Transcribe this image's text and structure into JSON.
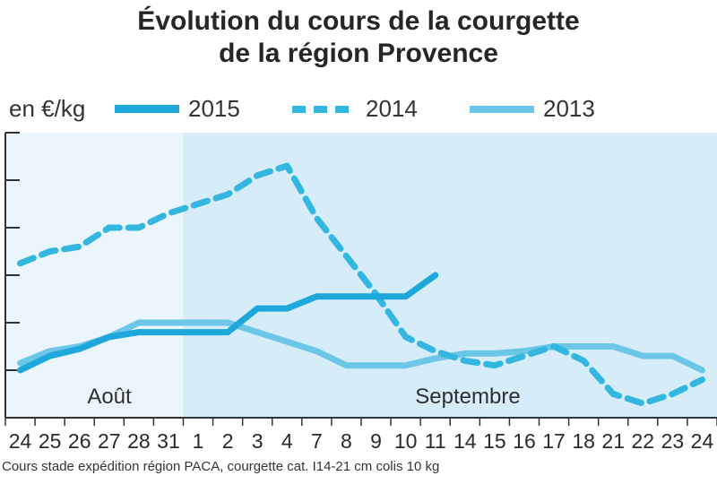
{
  "chart_data": {
    "type": "line",
    "title_lines": [
      "Évolution du cours de la courgette",
      "de la région Provence"
    ],
    "unit_label": "en €/kg",
    "categories": [
      "24",
      "25",
      "26",
      "27",
      "28",
      "31",
      "1",
      "2",
      "3",
      "4",
      "7",
      "8",
      "9",
      "10",
      "11",
      "14",
      "15",
      "16",
      "17",
      "18",
      "21",
      "22",
      "23",
      "24"
    ],
    "periods": [
      {
        "label": "Août",
        "from_index": 0,
        "to_index": 5
      },
      {
        "label": "Septembre",
        "from_index": 6,
        "to_index": 23
      }
    ],
    "y_ticks": [
      0,
      1,
      2,
      3,
      4,
      5,
      6
    ],
    "y_tick_labels_visible": false,
    "ylim": [
      0,
      6
    ],
    "series": [
      {
        "name": "2015",
        "style": "solid-thick",
        "color": "#1ea7db",
        "values": [
          1.0,
          1.3,
          1.45,
          1.7,
          1.8,
          1.8,
          1.8,
          1.8,
          2.3,
          2.3,
          2.55,
          2.55,
          2.55,
          2.55,
          3.0,
          null,
          null,
          null,
          null,
          null,
          null,
          null,
          null,
          null
        ]
      },
      {
        "name": "2014",
        "style": "dashed",
        "color": "#33b7e0",
        "values": [
          3.25,
          3.5,
          3.6,
          4.0,
          4.0,
          4.3,
          4.5,
          4.7,
          5.1,
          5.3,
          4.2,
          3.4,
          2.6,
          1.7,
          1.4,
          1.2,
          1.1,
          1.3,
          1.5,
          1.2,
          0.5,
          0.3,
          0.5,
          0.8
        ]
      },
      {
        "name": "2013",
        "style": "solid-light",
        "color": "#6cc6e8",
        "values": [
          1.15,
          1.4,
          1.5,
          1.7,
          2.0,
          2.0,
          2.0,
          2.0,
          1.8,
          1.6,
          1.4,
          1.1,
          1.1,
          1.1,
          1.25,
          1.35,
          1.35,
          1.4,
          1.5,
          1.5,
          1.5,
          1.3,
          1.3,
          1.0
        ]
      }
    ],
    "grid": false,
    "legend_position": "top"
  },
  "source_note": "Cours stade expédition région PACA, courgette cat. I14-21 cm colis 10 kg",
  "colors": {
    "panel_light": "#eaf6fc",
    "panel_dark": "#d6edf9",
    "axis": "#333333",
    "line_2015": "#1ea7db",
    "line_2014": "#33b7e0",
    "line_2013": "#6cc6e8"
  }
}
